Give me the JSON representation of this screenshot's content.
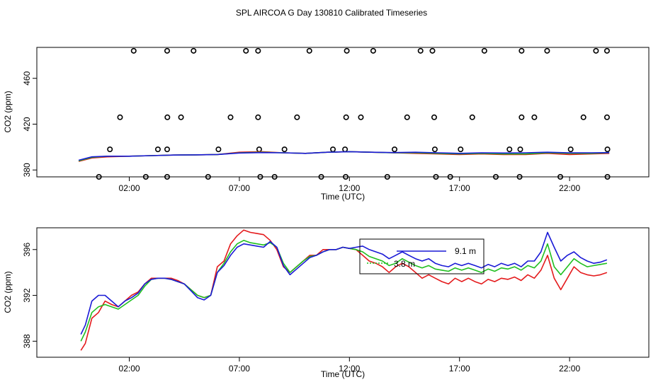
{
  "page_title": "SPL AIRCOA G  Day 130810  Calibrated Timeseries",
  "colors": {
    "red": "#e41a1c",
    "green": "#1fbf1f",
    "blue": "#1a1ad6",
    "axis": "#000000"
  },
  "chart_data": [
    {
      "type": "scatter",
      "xlabel": "Time (UTC)",
      "ylabel": "CO2 (ppm)",
      "x_ticks": [
        2,
        7,
        12,
        17,
        22
      ],
      "x_tick_labels": [
        "02:00",
        "07:00",
        "12:00",
        "17:00",
        "22:00"
      ],
      "y_ticks": [
        380,
        420,
        460
      ],
      "y_tick_labels": [
        "380",
        "420",
        "460"
      ],
      "xlim": [
        -2.2,
        25.6
      ],
      "ylim": [
        374,
        487
      ],
      "series": [
        {
          "style": "circle",
          "points": [
            [
              0.62,
              374
            ],
            [
              2.75,
              374
            ],
            [
              3.72,
              374
            ],
            [
              5.58,
              374
            ],
            [
              7.95,
              374
            ],
            [
              8.6,
              374
            ],
            [
              10.72,
              374
            ],
            [
              11.83,
              374
            ],
            [
              13.72,
              374
            ],
            [
              15.93,
              374
            ],
            [
              16.58,
              374
            ],
            [
              18.65,
              374
            ],
            [
              19.73,
              374
            ],
            [
              21.58,
              374
            ],
            [
              23.72,
              374
            ],
            [
              1.12,
              398
            ],
            [
              3.3,
              398
            ],
            [
              3.72,
              398
            ],
            [
              6.05,
              398
            ],
            [
              7.9,
              398
            ],
            [
              9.05,
              398
            ],
            [
              11.25,
              398
            ],
            [
              11.8,
              398
            ],
            [
              14.05,
              398
            ],
            [
              15.88,
              398
            ],
            [
              17.05,
              398
            ],
            [
              19.27,
              398
            ],
            [
              19.76,
              398
            ],
            [
              22.05,
              398
            ],
            [
              23.72,
              398
            ],
            [
              1.58,
              426
            ],
            [
              3.73,
              426
            ],
            [
              4.35,
              426
            ],
            [
              6.6,
              426
            ],
            [
              7.85,
              426
            ],
            [
              9.62,
              426
            ],
            [
              11.85,
              426
            ],
            [
              12.52,
              426
            ],
            [
              14.62,
              426
            ],
            [
              15.85,
              426
            ],
            [
              17.58,
              426
            ],
            [
              19.82,
              426
            ],
            [
              20.4,
              426
            ],
            [
              22.63,
              426
            ],
            [
              23.7,
              426
            ],
            [
              2.2,
              484
            ],
            [
              3.72,
              484
            ],
            [
              4.92,
              484
            ],
            [
              7.3,
              484
            ],
            [
              7.85,
              484
            ],
            [
              10.18,
              484
            ],
            [
              11.88,
              484
            ],
            [
              13.08,
              484
            ],
            [
              15.23,
              484
            ],
            [
              15.77,
              484
            ],
            [
              18.13,
              484
            ],
            [
              19.82,
              484
            ],
            [
              20.98,
              484
            ],
            [
              23.2,
              484
            ],
            [
              23.7,
              484
            ]
          ]
        },
        {
          "style": "line",
          "color": "#e41a1c",
          "x": [
            -0.3,
            0.3,
            1.0,
            2.0,
            3.0,
            4.0,
            5.0,
            6.0,
            7.0,
            8.0,
            9.0,
            10.0,
            11.0,
            12.0,
            13.0,
            14.0,
            15.0,
            16.0,
            17.0,
            18.0,
            19.0,
            20.0,
            21.0,
            22.0,
            23.0,
            23.8
          ],
          "y": [
            387.5,
            390.5,
            391.5,
            392,
            392.5,
            393,
            393.2,
            393.5,
            395.5,
            396,
            395,
            394.5,
            395.5,
            396,
            395.5,
            395,
            394.5,
            394,
            393.5,
            394,
            393.5,
            393.5,
            394.5,
            393.5,
            394,
            394.5
          ]
        },
        {
          "style": "line",
          "color": "#1fbf1f",
          "x": [
            -0.3,
            0.3,
            1.0,
            2.0,
            3.0,
            4.0,
            5.0,
            6.0,
            7.0,
            8.0,
            9.0,
            10.0,
            11.0,
            12.0,
            13.0,
            14.0,
            15.0,
            16.0,
            17.0,
            18.0,
            19.0,
            20.0,
            21.0,
            22.0,
            23.0,
            23.8
          ],
          "y": [
            388,
            391,
            392,
            392,
            392.5,
            393,
            393.2,
            393.5,
            395,
            395.5,
            395,
            394.5,
            395.5,
            396,
            395.5,
            395,
            395,
            394.5,
            394,
            394.5,
            394,
            394,
            395,
            394.5,
            394.5,
            395
          ]
        },
        {
          "style": "line",
          "color": "#1a1ad6",
          "x": [
            -0.3,
            0.3,
            1.0,
            2.0,
            3.0,
            4.0,
            5.0,
            6.0,
            7.0,
            8.0,
            9.0,
            10.0,
            11.0,
            12.0,
            13.0,
            14.0,
            15.0,
            16.0,
            17.0,
            18.0,
            19.0,
            20.0,
            21.0,
            22.0,
            23.0,
            23.8
          ],
          "y": [
            388.5,
            391.5,
            392,
            392,
            392.5,
            393,
            393.2,
            393.5,
            394.8,
            395.2,
            395,
            394.5,
            395.5,
            396,
            395.5,
            395.2,
            395.5,
            395,
            394.5,
            395,
            394.8,
            395,
            395.5,
            395,
            395,
            395.2
          ]
        }
      ]
    },
    {
      "type": "line",
      "xlabel": "Time (UTC)",
      "ylabel": "CO2 (ppm)",
      "x_ticks": [
        2,
        7,
        12,
        17,
        22
      ],
      "x_tick_labels": [
        "02:00",
        "07:00",
        "12:00",
        "17:00",
        "22:00"
      ],
      "y_ticks": [
        388,
        392,
        396
      ],
      "y_tick_labels": [
        "388",
        "392",
        "396"
      ],
      "xlim": [
        -2.2,
        25.6
      ],
      "ylim": [
        386.6,
        397.9
      ],
      "legend_entries": [
        "9.1 m",
        "3.8 m"
      ],
      "series": [
        {
          "color": "#e41a1c",
          "x": [
            -0.2,
            0,
            0.3,
            0.6,
            0.9,
            1.2,
            1.5,
            1.8,
            2.1,
            2.4,
            2.7,
            3.0,
            3.3,
            3.6,
            3.9,
            4.2,
            4.5,
            4.8,
            5.1,
            5.4,
            5.7,
            6.0,
            6.3,
            6.6,
            6.9,
            7.2,
            7.5,
            7.8,
            8.1,
            8.4,
            8.7,
            9.0,
            9.3,
            9.6,
            9.9,
            10.2,
            10.5,
            10.8,
            11.1,
            11.4,
            11.7,
            12.0,
            12.3,
            12.6,
            12.9,
            13.2,
            13.5,
            13.8,
            14.1,
            14.4,
            14.7,
            15.0,
            15.3,
            15.6,
            15.9,
            16.2,
            16.5,
            16.8,
            17.1,
            17.4,
            17.7,
            18.0,
            18.3,
            18.6,
            18.9,
            19.2,
            19.5,
            19.8,
            20.1,
            20.4,
            20.7,
            21.0,
            21.3,
            21.6,
            21.9,
            22.2,
            22.5,
            22.8,
            23.1,
            23.4,
            23.7
          ],
          "y": [
            387.2,
            387.8,
            390,
            390.5,
            391.5,
            391.2,
            391,
            391.5,
            392,
            392.3,
            393,
            393.5,
            393.5,
            393.5,
            393.5,
            393.3,
            393,
            392.5,
            392,
            391.8,
            392,
            394.5,
            395,
            396.5,
            397.2,
            397.7,
            397.5,
            397.4,
            397.3,
            396.8,
            396,
            394.5,
            394,
            394.5,
            395,
            395.5,
            395.5,
            396,
            396,
            396,
            396.2,
            396.1,
            396,
            395.5,
            395,
            394.8,
            394.5,
            394,
            394.5,
            394.8,
            394.5,
            394,
            393.5,
            393.8,
            393.5,
            393.2,
            393,
            393.5,
            393.2,
            393.5,
            393.2,
            393,
            393.4,
            393.2,
            393.5,
            393.4,
            393.6,
            393.3,
            393.8,
            393.5,
            394.2,
            395.5,
            393.5,
            392.5,
            393.5,
            394.5,
            394,
            393.8,
            393.7,
            393.8,
            394
          ]
        },
        {
          "color": "#1fbf1f",
          "x": [
            -0.2,
            0,
            0.3,
            0.6,
            0.9,
            1.2,
            1.5,
            1.8,
            2.1,
            2.4,
            2.7,
            3.0,
            3.3,
            3.6,
            3.9,
            4.2,
            4.5,
            4.8,
            5.1,
            5.4,
            5.7,
            6.0,
            6.3,
            6.6,
            6.9,
            7.2,
            7.5,
            7.8,
            8.1,
            8.4,
            8.7,
            9.0,
            9.3,
            9.6,
            9.9,
            10.2,
            10.5,
            10.8,
            11.1,
            11.4,
            11.7,
            12.0,
            12.3,
            12.6,
            12.9,
            13.2,
            13.5,
            13.8,
            14.1,
            14.4,
            14.7,
            15.0,
            15.3,
            15.6,
            15.9,
            16.2,
            16.5,
            16.8,
            17.1,
            17.4,
            17.7,
            18.0,
            18.3,
            18.6,
            18.9,
            19.2,
            19.5,
            19.8,
            20.1,
            20.4,
            20.7,
            21.0,
            21.3,
            21.6,
            21.9,
            22.2,
            22.5,
            22.8,
            23.1,
            23.4,
            23.7
          ],
          "y": [
            388,
            388.8,
            390.5,
            391,
            391.2,
            391,
            390.8,
            391.2,
            391.6,
            392,
            392.8,
            393.4,
            393.5,
            393.5,
            393.4,
            393.2,
            393,
            392.5,
            392,
            391.8,
            392,
            394,
            394.8,
            395.8,
            396.5,
            396.8,
            396.6,
            396.5,
            396.4,
            396.6,
            396.2,
            394.8,
            394,
            394.5,
            395,
            395.4,
            395.5,
            395.8,
            396,
            396,
            396.2,
            396.1,
            396,
            395.8,
            395.4,
            395.2,
            395,
            394.6,
            394.8,
            395.2,
            394.9,
            394.6,
            394.4,
            394.6,
            394.3,
            394.2,
            394.1,
            394.4,
            394.2,
            394.4,
            394.2,
            394,
            394.3,
            394.1,
            394.4,
            394.3,
            394.5,
            394.2,
            394.6,
            394.4,
            395,
            396.5,
            394.5,
            393.8,
            394.5,
            395.2,
            394.8,
            394.5,
            394.6,
            394.7,
            394.8
          ]
        },
        {
          "color": "#1a1ad6",
          "x": [
            -0.2,
            0,
            0.3,
            0.6,
            0.9,
            1.2,
            1.5,
            1.8,
            2.1,
            2.4,
            2.7,
            3.0,
            3.3,
            3.6,
            3.9,
            4.2,
            4.5,
            4.8,
            5.1,
            5.4,
            5.7,
            6.0,
            6.3,
            6.6,
            6.9,
            7.2,
            7.5,
            7.8,
            8.1,
            8.4,
            8.7,
            9.0,
            9.3,
            9.6,
            9.9,
            10.2,
            10.5,
            10.8,
            11.1,
            11.4,
            11.7,
            12.0,
            12.3,
            12.6,
            12.9,
            13.2,
            13.5,
            13.8,
            14.1,
            14.4,
            14.7,
            15.0,
            15.3,
            15.6,
            15.9,
            16.2,
            16.5,
            16.8,
            17.1,
            17.4,
            17.7,
            18.0,
            18.3,
            18.6,
            18.9,
            19.2,
            19.5,
            19.8,
            20.1,
            20.4,
            20.7,
            21.0,
            21.3,
            21.6,
            21.9,
            22.2,
            22.5,
            22.8,
            23.1,
            23.4,
            23.7
          ],
          "y": [
            388.6,
            389.4,
            391.5,
            392,
            392,
            391.5,
            391,
            391.5,
            391.8,
            392.2,
            393,
            393.4,
            393.5,
            393.5,
            393.4,
            393.2,
            393,
            392.4,
            391.8,
            391.6,
            392,
            394,
            394.6,
            395.5,
            396.2,
            396.5,
            396.4,
            396.3,
            396.2,
            396.7,
            396.2,
            394.6,
            393.8,
            394.3,
            394.8,
            395.3,
            395.5,
            395.8,
            396,
            396,
            396.2,
            396.1,
            396.2,
            396.3,
            396,
            395.8,
            395.6,
            395.2,
            395.5,
            395.8,
            395.5,
            395.2,
            395,
            395.2,
            394.8,
            394.6,
            394.5,
            394.8,
            394.6,
            394.8,
            394.6,
            394.4,
            394.7,
            394.5,
            394.8,
            394.6,
            394.8,
            394.5,
            395,
            395,
            395.8,
            397.5,
            396.2,
            395,
            395.5,
            395.8,
            395.3,
            395,
            394.8,
            394.9,
            395.1
          ]
        }
      ]
    }
  ]
}
